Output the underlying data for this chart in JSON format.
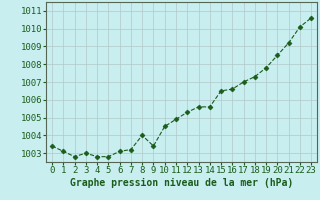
{
  "x": [
    0,
    1,
    2,
    3,
    4,
    5,
    6,
    7,
    8,
    9,
    10,
    11,
    12,
    13,
    14,
    15,
    16,
    17,
    18,
    19,
    20,
    21,
    22,
    23
  ],
  "y": [
    1003.4,
    1003.1,
    1002.8,
    1003.0,
    1002.8,
    1002.8,
    1003.1,
    1003.2,
    1004.0,
    1003.4,
    1004.5,
    1004.9,
    1005.3,
    1005.6,
    1005.6,
    1006.5,
    1006.6,
    1007.0,
    1007.3,
    1007.8,
    1008.5,
    1009.2,
    1010.1,
    1010.6
  ],
  "line_color": "#1a5c1a",
  "marker_color": "#1a5c1a",
  "bg_color": "#c8eef0",
  "grid_color": "#b0c8c8",
  "xlabel": "Graphe pression niveau de la mer (hPa)",
  "ylim": [
    1002.5,
    1011.5
  ],
  "xlim": [
    -0.5,
    23.5
  ],
  "yticks": [
    1003,
    1004,
    1005,
    1006,
    1007,
    1008,
    1009,
    1010,
    1011
  ],
  "xticks": [
    0,
    1,
    2,
    3,
    4,
    5,
    6,
    7,
    8,
    9,
    10,
    11,
    12,
    13,
    14,
    15,
    16,
    17,
    18,
    19,
    20,
    21,
    22,
    23
  ],
  "xlabel_color": "#1a5c1a",
  "xlabel_fontsize": 7,
  "tick_fontsize": 6.5,
  "figsize": [
    3.2,
    2.0
  ],
  "dpi": 100
}
